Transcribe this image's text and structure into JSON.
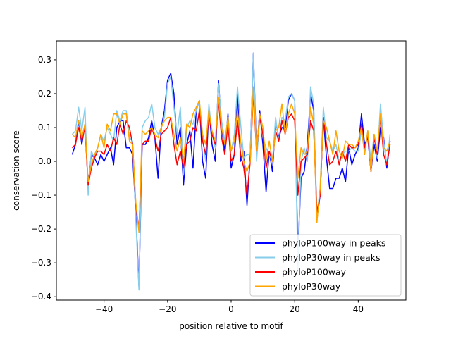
{
  "chart_data": {
    "type": "line",
    "title": "",
    "xlabel": "position relative to motif",
    "ylabel": "conservation score",
    "xlim": [
      -55,
      55
    ],
    "ylim": [
      -0.41,
      0.356
    ],
    "xticks": [
      -40,
      -20,
      0,
      20,
      40
    ],
    "xtick_labels": [
      "−40",
      "−20",
      "0",
      "20",
      "40"
    ],
    "yticks": [
      -0.4,
      -0.3,
      -0.2,
      -0.1,
      0.0,
      0.1,
      0.2,
      0.3
    ],
    "ytick_labels": [
      "−0.4",
      "−0.3",
      "−0.2",
      "−0.1",
      "0.0",
      "0.1",
      "0.2",
      "0.3"
    ],
    "grid": false,
    "legend_position": "lower-right",
    "x_start": -50,
    "x_end": 50,
    "series": [
      {
        "name": "phyloP100way in peaks",
        "color": "#0000ff",
        "values": [
          0.02,
          0.05,
          0.12,
          0.05,
          0.11,
          -0.07,
          0.02,
          0.01,
          -0.01,
          0.02,
          0.0,
          0.02,
          0.04,
          -0.01,
          0.1,
          0.12,
          0.12,
          0.04,
          0.04,
          0.02,
          -0.15,
          -0.37,
          0.05,
          0.05,
          0.07,
          0.12,
          0.07,
          -0.05,
          0.1,
          0.15,
          0.24,
          0.26,
          0.2,
          0.05,
          0.1,
          -0.07,
          0.05,
          0.09,
          -0.02,
          0.15,
          0.18,
          0.0,
          -0.05,
          0.16,
          0.05,
          0.0,
          0.24,
          0.1,
          0.03,
          0.14,
          -0.02,
          0.02,
          0.2,
          0.0,
          0.03,
          -0.13,
          0.02,
          0.32,
          0.02,
          0.15,
          0.05,
          -0.09,
          0.03,
          -0.03,
          0.12,
          0.07,
          0.1,
          0.1,
          0.18,
          0.2,
          0.18,
          -0.27,
          -0.05,
          -0.03,
          0.05,
          0.2,
          0.15,
          -0.17,
          -0.1,
          0.13,
          0.01,
          -0.08,
          -0.08,
          -0.05,
          -0.05,
          -0.02,
          -0.06,
          0.04,
          -0.01,
          0.02,
          0.04,
          0.14,
          0.05,
          0.07,
          -0.03,
          0.05,
          0.0,
          0.1,
          0.07,
          -0.02,
          0.06
        ]
      },
      {
        "name": "phyloP30way in peaks",
        "color": "#87ceeb",
        "values": [
          0.08,
          0.09,
          0.16,
          0.09,
          0.16,
          -0.1,
          0.03,
          0.01,
          0.04,
          0.08,
          0.06,
          0.1,
          0.08,
          0.06,
          0.15,
          0.12,
          0.15,
          0.15,
          0.07,
          0.06,
          -0.17,
          -0.38,
          0.1,
          0.12,
          0.13,
          0.17,
          0.1,
          0.08,
          0.1,
          0.13,
          0.23,
          0.25,
          0.16,
          0.08,
          0.16,
          -0.04,
          0.1,
          0.12,
          0.11,
          0.15,
          0.18,
          0.08,
          0.0,
          0.17,
          0.08,
          0.04,
          0.23,
          0.12,
          0.06,
          0.13,
          0.03,
          0.08,
          0.22,
          0.11,
          0.01,
          0.02,
          0.02,
          0.32,
          0.0,
          0.13,
          0.07,
          0.04,
          0.02,
          0.0,
          0.13,
          0.06,
          0.13,
          0.12,
          0.19,
          0.2,
          0.18,
          -0.32,
          0.0,
          0.04,
          0.0,
          0.22,
          0.17,
          -0.16,
          -0.08,
          0.16,
          0.07,
          0.06,
          0.03,
          0.05,
          0.0,
          0.02,
          0.03,
          0.03,
          0.04,
          0.03,
          0.03,
          0.09,
          0.03,
          0.09,
          0.0,
          0.08,
          0.01,
          0.17,
          0.06,
          -0.01,
          0.08
        ]
      },
      {
        "name": "phyloP100way",
        "color": "#ff0000",
        "values": [
          0.04,
          0.05,
          0.1,
          0.06,
          0.1,
          -0.07,
          -0.02,
          0.01,
          0.03,
          0.03,
          0.02,
          0.05,
          0.03,
          0.07,
          0.05,
          0.11,
          0.08,
          0.12,
          0.1,
          0.05,
          -0.13,
          -0.2,
          0.05,
          0.06,
          0.06,
          0.1,
          0.07,
          0.03,
          0.08,
          0.09,
          0.1,
          0.13,
          0.05,
          -0.01,
          0.03,
          -0.02,
          0.05,
          0.06,
          0.1,
          0.09,
          0.15,
          0.06,
          0.02,
          0.14,
          0.08,
          0.05,
          0.18,
          0.07,
          0.02,
          0.11,
          0.0,
          0.02,
          0.12,
          0.02,
          -0.02,
          -0.1,
          0.0,
          0.2,
          0.03,
          0.13,
          0.08,
          -0.02,
          0.03,
          0.0,
          0.09,
          0.06,
          0.12,
          0.08,
          0.13,
          0.14,
          0.12,
          -0.1,
          0.0,
          0.01,
          0.02,
          0.12,
          0.09,
          -0.15,
          -0.1,
          0.13,
          0.05,
          -0.01,
          0.0,
          0.03,
          -0.01,
          0.03,
          0.0,
          0.05,
          0.04,
          0.04,
          0.05,
          0.11,
          0.04,
          0.08,
          -0.03,
          0.07,
          0.02,
          0.13,
          0.02,
          -0.01,
          0.05
        ]
      },
      {
        "name": "phyloP30way",
        "color": "#ffa500",
        "values": [
          0.08,
          0.07,
          0.12,
          0.07,
          0.11,
          -0.06,
          -0.01,
          0.02,
          0.04,
          0.08,
          0.04,
          0.11,
          0.09,
          0.14,
          0.14,
          0.11,
          0.14,
          0.14,
          0.06,
          0.05,
          -0.12,
          -0.21,
          0.09,
          0.08,
          0.09,
          0.1,
          0.08,
          0.07,
          0.1,
          0.12,
          0.13,
          0.13,
          0.08,
          0.03,
          0.07,
          0.0,
          0.11,
          0.1,
          0.14,
          0.16,
          0.18,
          0.08,
          0.05,
          0.15,
          0.09,
          0.06,
          0.19,
          0.1,
          0.05,
          0.13,
          0.03,
          0.06,
          0.15,
          0.06,
          0.0,
          -0.03,
          0.0,
          0.22,
          0.03,
          0.14,
          0.1,
          0.0,
          0.06,
          0.0,
          0.09,
          0.1,
          0.17,
          0.08,
          0.14,
          0.17,
          0.14,
          -0.05,
          0.04,
          0.02,
          0.03,
          0.16,
          0.11,
          -0.18,
          -0.08,
          0.12,
          0.1,
          0.06,
          0.02,
          0.09,
          0.03,
          0.01,
          0.06,
          0.05,
          0.05,
          0.04,
          0.06,
          0.1,
          0.02,
          0.09,
          -0.03,
          0.08,
          0.03,
          0.14,
          0.04,
          0.03,
          0.06
        ]
      }
    ]
  }
}
